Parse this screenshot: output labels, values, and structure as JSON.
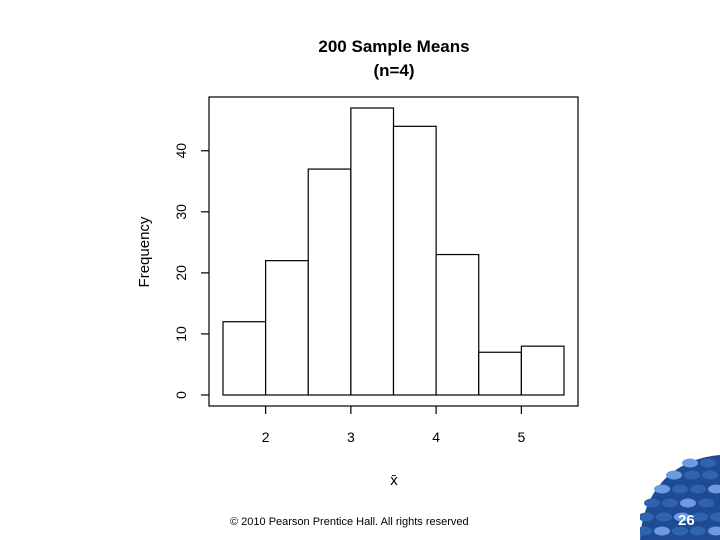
{
  "chart_data": {
    "type": "bar",
    "subtype": "histogram",
    "title": "200 Sample Means",
    "subtitle": "(n=4)",
    "xlabel": "x̄",
    "ylabel": "Frequency",
    "bins": [
      {
        "start": 1.5,
        "end": 2.0,
        "value": 12
      },
      {
        "start": 2.0,
        "end": 2.5,
        "value": 22
      },
      {
        "start": 2.5,
        "end": 3.0,
        "value": 37
      },
      {
        "start": 3.0,
        "end": 3.5,
        "value": 47
      },
      {
        "start": 3.5,
        "end": 4.0,
        "value": 44
      },
      {
        "start": 4.0,
        "end": 4.5,
        "value": 23
      },
      {
        "start": 4.5,
        "end": 5.0,
        "value": 7
      },
      {
        "start": 5.0,
        "end": 5.5,
        "value": 8
      }
    ],
    "xticks": [
      2,
      3,
      4,
      5
    ],
    "yticks": [
      0,
      10,
      20,
      30,
      40
    ],
    "xlim": [
      1.35,
      5.65
    ],
    "ylim": [
      0,
      48
    ],
    "grid": false,
    "legend": "none",
    "bar_fill": "#ffffff",
    "bar_stroke": "#000000"
  },
  "footer": {
    "copyright": "© 2010 Pearson Prentice Hall. All rights reserved",
    "page_number": "26"
  },
  "colors": {
    "logo_blue": "#2f63b0",
    "logo_dark": "#1f4b95",
    "logo_light": "#6e9be0"
  },
  "icons": {
    "logo": "publisher-logo-icon"
  }
}
